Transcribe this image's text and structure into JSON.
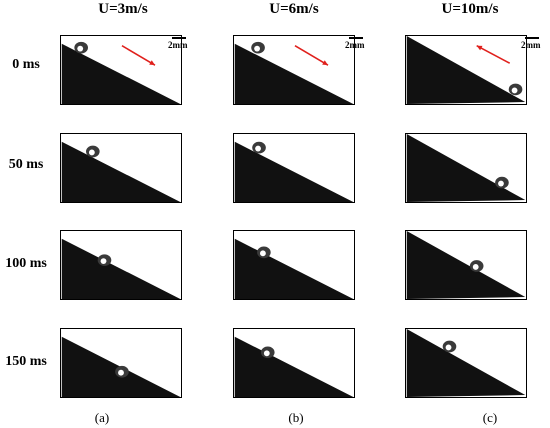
{
  "columns": [
    {
      "header": "U=3m/s",
      "caption": "(a)",
      "flow_arrow": "down-right"
    },
    {
      "header": "U=6m/s",
      "caption": "(b)",
      "flow_arrow": "down-right"
    },
    {
      "header": "U=10m/s",
      "caption": "(c)",
      "flow_arrow": "up-left"
    }
  ],
  "rows": [
    {
      "label": "0 ms"
    },
    {
      "label": "50 ms"
    },
    {
      "label": "100 ms"
    },
    {
      "label": "150 ms"
    }
  ],
  "scale_bar": {
    "label": "2mm"
  },
  "colors": {
    "surface": "#111111",
    "droplet": "#3a3a3a",
    "arrow": "#e0201c"
  }
}
